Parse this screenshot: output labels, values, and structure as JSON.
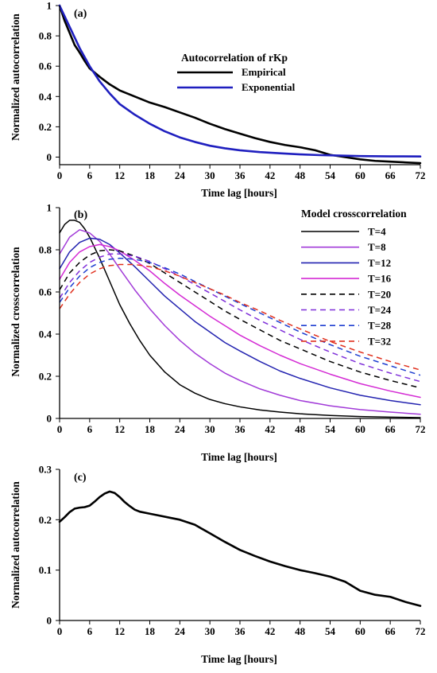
{
  "chart_data": [
    {
      "type": "line",
      "panel_label": "(a)",
      "title": "",
      "xlabel": "Time lag [hours]",
      "ylabel": "Normalized autocorrelation",
      "xlim": [
        0,
        72
      ],
      "ylim": [
        -0.05,
        1.0
      ],
      "xticks": [
        0,
        6,
        12,
        18,
        24,
        30,
        36,
        42,
        48,
        54,
        60,
        66,
        72
      ],
      "yticks": [
        0,
        0.2,
        0.4,
        0.6,
        0.8,
        1
      ],
      "ytick_labels": [
        "0",
        "0.2",
        "0.4",
        "0.6",
        "0.8",
        "1"
      ],
      "grid": false,
      "legend": {
        "title": "Autocorrelation of rKp",
        "position": "upper-middle"
      },
      "series": [
        {
          "name": "Empirical",
          "color": "#000000",
          "dash": "solid",
          "x": [
            0,
            1,
            2,
            3,
            4,
            5,
            6,
            8,
            10,
            12,
            15,
            18,
            21,
            24,
            27,
            30,
            33,
            36,
            39,
            42,
            45,
            48,
            51,
            54,
            57,
            60,
            63,
            66,
            69,
            72
          ],
          "y": [
            1.0,
            0.9,
            0.82,
            0.74,
            0.69,
            0.635,
            0.585,
            0.53,
            0.48,
            0.44,
            0.4,
            0.36,
            0.33,
            0.295,
            0.26,
            0.22,
            0.185,
            0.155,
            0.125,
            0.1,
            0.08,
            0.065,
            0.045,
            0.015,
            0.0,
            -0.015,
            -0.025,
            -0.03,
            -0.035,
            -0.04
          ]
        },
        {
          "name": "Exponential",
          "color": "#1f1fbf",
          "dash": "solid",
          "x": [
            0,
            2,
            4,
            6,
            8,
            10,
            12,
            15,
            18,
            21,
            24,
            27,
            30,
            33,
            36,
            40,
            44,
            48,
            52,
            56,
            60,
            66,
            72
          ],
          "y": [
            1.0,
            0.86,
            0.72,
            0.6,
            0.5,
            0.42,
            0.35,
            0.28,
            0.22,
            0.17,
            0.13,
            0.1,
            0.075,
            0.058,
            0.045,
            0.033,
            0.025,
            0.018,
            0.013,
            0.01,
            0.007,
            0.005,
            0.004
          ]
        }
      ]
    },
    {
      "type": "line",
      "panel_label": "(b)",
      "title": "",
      "xlabel": "Time lag [hours]",
      "ylabel": "Normalized crosscorrelation",
      "xlim": [
        0,
        72
      ],
      "ylim": [
        0,
        1.0
      ],
      "xticks": [
        0,
        6,
        12,
        18,
        24,
        30,
        36,
        42,
        48,
        54,
        60,
        66,
        72
      ],
      "yticks": [
        0,
        0.2,
        0.4,
        0.6,
        0.8,
        1
      ],
      "ytick_labels": [
        "0",
        "0.2",
        "0.4",
        "0.6",
        "0.8",
        "1"
      ],
      "grid": false,
      "legend": {
        "title": "Model crosscorrelation",
        "position": "right"
      },
      "series": [
        {
          "name": "T=4",
          "color": "#000000",
          "dash": "solid",
          "x": [
            0,
            1,
            2,
            3,
            4,
            5,
            6,
            8,
            10,
            12,
            14,
            16,
            18,
            21,
            24,
            27,
            30,
            33,
            36,
            40,
            44,
            48,
            54,
            60,
            66,
            72
          ],
          "y": [
            0.88,
            0.92,
            0.94,
            0.94,
            0.93,
            0.9,
            0.86,
            0.76,
            0.65,
            0.54,
            0.45,
            0.37,
            0.3,
            0.22,
            0.16,
            0.12,
            0.09,
            0.07,
            0.055,
            0.04,
            0.03,
            0.022,
            0.014,
            0.009,
            0.006,
            0.004
          ]
        },
        {
          "name": "T=8",
          "color": "#a23bd8",
          "dash": "solid",
          "x": [
            0,
            2,
            4,
            6,
            8,
            10,
            12,
            15,
            18,
            21,
            24,
            27,
            30,
            33,
            36,
            40,
            44,
            48,
            54,
            60,
            66,
            72
          ],
          "y": [
            0.78,
            0.86,
            0.895,
            0.88,
            0.84,
            0.78,
            0.71,
            0.61,
            0.52,
            0.44,
            0.37,
            0.31,
            0.26,
            0.215,
            0.18,
            0.14,
            0.11,
            0.085,
            0.06,
            0.042,
            0.03,
            0.02
          ]
        },
        {
          "name": "T=12",
          "color": "#2323b0",
          "dash": "solid",
          "x": [
            0,
            2,
            4,
            6,
            8,
            10,
            12,
            15,
            18,
            21,
            24,
            27,
            30,
            33,
            36,
            40,
            44,
            48,
            54,
            60,
            66,
            72
          ],
          "y": [
            0.71,
            0.79,
            0.835,
            0.855,
            0.85,
            0.825,
            0.785,
            0.72,
            0.65,
            0.58,
            0.52,
            0.46,
            0.41,
            0.36,
            0.32,
            0.27,
            0.225,
            0.19,
            0.145,
            0.11,
            0.085,
            0.065
          ]
        },
        {
          "name": "T=16",
          "color": "#d42bd4",
          "dash": "solid",
          "x": [
            0,
            2,
            4,
            6,
            8,
            10,
            12,
            15,
            18,
            21,
            24,
            27,
            30,
            33,
            36,
            40,
            44,
            48,
            54,
            60,
            66,
            72
          ],
          "y": [
            0.66,
            0.74,
            0.79,
            0.815,
            0.825,
            0.815,
            0.795,
            0.75,
            0.7,
            0.64,
            0.585,
            0.535,
            0.485,
            0.44,
            0.395,
            0.345,
            0.3,
            0.26,
            0.21,
            0.165,
            0.13,
            0.1
          ]
        },
        {
          "name": "T=20",
          "color": "#000000",
          "dash": "dashed",
          "x": [
            0,
            2,
            4,
            6,
            8,
            10,
            12,
            15,
            18,
            21,
            24,
            27,
            30,
            33,
            36,
            40,
            44,
            48,
            54,
            60,
            66,
            72
          ],
          "y": [
            0.61,
            0.69,
            0.74,
            0.775,
            0.795,
            0.8,
            0.795,
            0.77,
            0.735,
            0.69,
            0.645,
            0.6,
            0.555,
            0.51,
            0.47,
            0.42,
            0.37,
            0.33,
            0.27,
            0.22,
            0.18,
            0.145
          ]
        },
        {
          "name": "T=24",
          "color": "#7f2fd9",
          "dash": "dashed",
          "x": [
            0,
            2,
            4,
            6,
            8,
            10,
            12,
            15,
            18,
            21,
            24,
            27,
            30,
            33,
            36,
            40,
            44,
            48,
            54,
            60,
            66,
            72
          ],
          "y": [
            0.57,
            0.645,
            0.7,
            0.74,
            0.765,
            0.78,
            0.78,
            0.77,
            0.745,
            0.71,
            0.675,
            0.635,
            0.595,
            0.555,
            0.515,
            0.465,
            0.42,
            0.375,
            0.315,
            0.26,
            0.215,
            0.175
          ]
        },
        {
          "name": "T=28",
          "color": "#1f3fd0",
          "dash": "dashed",
          "x": [
            0,
            2,
            4,
            6,
            8,
            10,
            12,
            15,
            18,
            21,
            24,
            27,
            30,
            33,
            36,
            40,
            44,
            48,
            54,
            60,
            66,
            72
          ],
          "y": [
            0.55,
            0.62,
            0.675,
            0.715,
            0.74,
            0.755,
            0.76,
            0.755,
            0.74,
            0.715,
            0.685,
            0.65,
            0.615,
            0.58,
            0.545,
            0.5,
            0.455,
            0.41,
            0.35,
            0.295,
            0.25,
            0.205
          ]
        },
        {
          "name": "T=32",
          "color": "#e0301e",
          "dash": "dashed",
          "x": [
            0,
            2,
            4,
            6,
            8,
            10,
            12,
            15,
            18,
            21,
            24,
            27,
            30,
            33,
            36,
            40,
            44,
            48,
            54,
            60,
            66,
            72
          ],
          "y": [
            0.52,
            0.59,
            0.645,
            0.685,
            0.71,
            0.725,
            0.73,
            0.73,
            0.72,
            0.7,
            0.675,
            0.645,
            0.615,
            0.585,
            0.55,
            0.51,
            0.465,
            0.425,
            0.365,
            0.315,
            0.27,
            0.23
          ]
        }
      ]
    },
    {
      "type": "line",
      "panel_label": "(c)",
      "title": "",
      "xlabel": "Time lag [hours]",
      "ylabel": "Normalized autocorrelation",
      "xlim": [
        0,
        72
      ],
      "ylim": [
        0,
        0.3
      ],
      "xticks": [
        0,
        6,
        12,
        18,
        24,
        30,
        36,
        42,
        48,
        54,
        60,
        66,
        72
      ],
      "yticks": [
        0,
        0.1,
        0.2,
        0.3
      ],
      "ytick_labels": [
        "0",
        "0.1",
        "0.2",
        "0.3"
      ],
      "grid": false,
      "series": [
        {
          "color": "#000000",
          "dash": "solid",
          "x": [
            0,
            1,
            2,
            3,
            4,
            5,
            6,
            7,
            8,
            9,
            10,
            11,
            12,
            13,
            14,
            15,
            16,
            18,
            20,
            22,
            24,
            27,
            30,
            33,
            36,
            39,
            42,
            45,
            48,
            51,
            54,
            57,
            60,
            63,
            66,
            69,
            72
          ],
          "y": [
            0.196,
            0.205,
            0.215,
            0.222,
            0.224,
            0.225,
            0.228,
            0.236,
            0.245,
            0.252,
            0.256,
            0.253,
            0.245,
            0.235,
            0.227,
            0.22,
            0.216,
            0.212,
            0.208,
            0.204,
            0.2,
            0.19,
            0.173,
            0.156,
            0.14,
            0.128,
            0.117,
            0.108,
            0.1,
            0.094,
            0.087,
            0.077,
            0.059,
            0.051,
            0.047,
            0.037,
            0.029
          ]
        }
      ]
    }
  ]
}
